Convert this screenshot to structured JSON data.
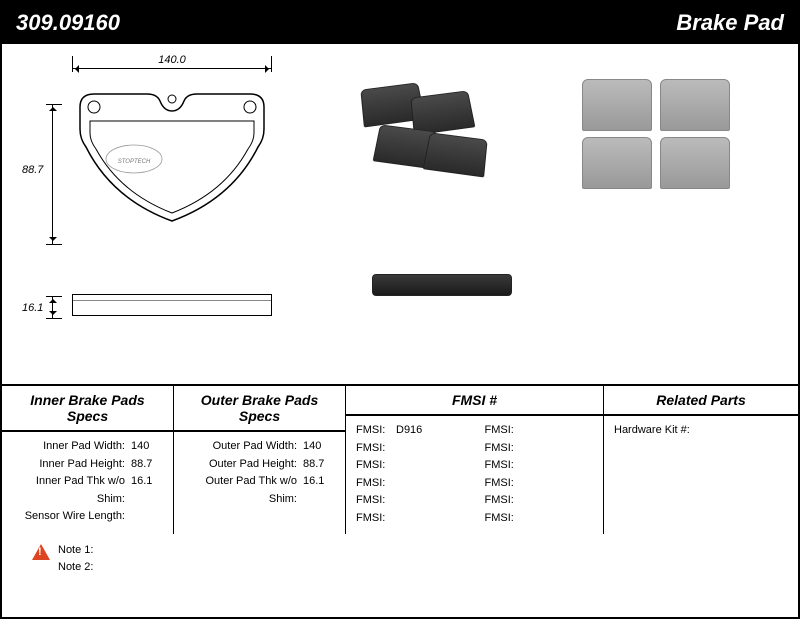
{
  "header": {
    "part_number": "309.09160",
    "category": "Brake Pad"
  },
  "dimensions": {
    "width": "140.0",
    "height": "88.7",
    "thickness": "16.1"
  },
  "inner_specs": {
    "title": "Inner Brake Pads Specs",
    "rows": [
      {
        "label": "Inner Pad Width:",
        "value": "140"
      },
      {
        "label": "Inner Pad Height:",
        "value": "88.7"
      },
      {
        "label": "Inner Pad Thk w/o Shim:",
        "value": "16.1"
      },
      {
        "label": "Sensor Wire Length:",
        "value": ""
      }
    ]
  },
  "outer_specs": {
    "title": "Outer Brake Pads Specs",
    "rows": [
      {
        "label": "Outer Pad Width:",
        "value": "140"
      },
      {
        "label": "Outer Pad Height:",
        "value": "88.7"
      },
      {
        "label": "Outer Pad Thk w/o Shim:",
        "value": "16.1"
      }
    ]
  },
  "fmsi": {
    "title": "FMSI #",
    "left": [
      {
        "label": "FMSI:",
        "value": "D916"
      },
      {
        "label": "FMSI:",
        "value": ""
      },
      {
        "label": "FMSI:",
        "value": ""
      },
      {
        "label": "FMSI:",
        "value": ""
      },
      {
        "label": "FMSI:",
        "value": ""
      },
      {
        "label": "FMSI:",
        "value": ""
      }
    ],
    "right": [
      {
        "label": "FMSI:",
        "value": ""
      },
      {
        "label": "FMSI:",
        "value": ""
      },
      {
        "label": "FMSI:",
        "value": ""
      },
      {
        "label": "FMSI:",
        "value": ""
      },
      {
        "label": "FMSI:",
        "value": ""
      },
      {
        "label": "FMSI:",
        "value": ""
      }
    ]
  },
  "related": {
    "title": "Related Parts",
    "rows": [
      {
        "label": "Hardware Kit #:",
        "value": ""
      }
    ]
  },
  "notes": {
    "note1_label": "Note 1:",
    "note1_value": "",
    "note2_label": "Note 2:",
    "note2_value": ""
  },
  "layout": {
    "col_widths": {
      "inner": 172,
      "outer": 172,
      "fmsi": 258,
      "related": 192
    },
    "colors": {
      "bg": "#ffffff",
      "header_bg": "#000000",
      "header_fg": "#ffffff",
      "border": "#000000",
      "warn": "#d42"
    }
  }
}
